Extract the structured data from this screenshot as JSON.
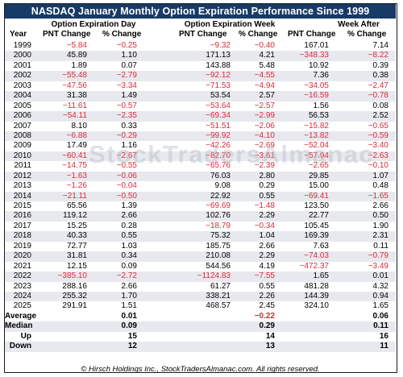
{
  "title": "NASDAQ January Monthly Option Expiration Performance Since 1999",
  "headers": {
    "group_day": "Option Expiration Day",
    "group_week": "Option Expiration Week",
    "group_after": "Week After",
    "year": "Year",
    "pnt_change": "PNT Change",
    "pct_change": "% Change"
  },
  "rows": [
    [
      "1999",
      "−5.84",
      "−0.25",
      "−9.32",
      "−0.40",
      "167.01",
      "7.14"
    ],
    [
      "2000",
      "45.89",
      "1.10",
      "171.13",
      "4.21",
      "−348.33",
      "−8.22"
    ],
    [
      "2001",
      "1.89",
      "0.07",
      "143.88",
      "5.48",
      "10.92",
      "0.39"
    ],
    [
      "2002",
      "−55.48",
      "−2.79",
      "−92.12",
      "−4.55",
      "7.36",
      "0.38"
    ],
    [
      "2003",
      "−47.56",
      "−3.34",
      "−71.53",
      "−4.94",
      "−34.05",
      "−2.47"
    ],
    [
      "2004",
      "31.38",
      "1.49",
      "53.54",
      "2.57",
      "−16.59",
      "−0.78"
    ],
    [
      "2005",
      "−11.61",
      "−0.57",
      "−53.64",
      "−2.57",
      "1.56",
      "0.08"
    ],
    [
      "2006",
      "−54.11",
      "−2.35",
      "−69.34",
      "−2.99",
      "56.53",
      "2.52"
    ],
    [
      "2007",
      "8.10",
      "0.33",
      "−51.51",
      "−2.06",
      "−15.82",
      "−0.65"
    ],
    [
      "2008",
      "−6.88",
      "−0.29",
      "−99.92",
      "−4.10",
      "−13.82",
      "−0.59"
    ],
    [
      "2009",
      "17.49",
      "1.16",
      "−42.26",
      "−2.69",
      "−52.04",
      "−3.40"
    ],
    [
      "2010",
      "−60.41",
      "−2.67",
      "−82.70",
      "−3.61",
      "−57.94",
      "−2.63"
    ],
    [
      "2011",
      "−14.75",
      "−0.55",
      "−65.76",
      "−2.39",
      "−2.65",
      "−0.10"
    ],
    [
      "2012",
      "−1.63",
      "−0.06",
      "76.03",
      "2.80",
      "29.85",
      "1.07"
    ],
    [
      "2013",
      "−1.26",
      "−0.04",
      "9.08",
      "0.29",
      "15.00",
      "0.48"
    ],
    [
      "2014",
      "−21.11",
      "−0.50",
      "22.92",
      "0.55",
      "−69.41",
      "−1.65"
    ],
    [
      "2015",
      "65.56",
      "1.39",
      "−69.69",
      "−1.48",
      "123.50",
      "2.66"
    ],
    [
      "2016",
      "119.12",
      "2.66",
      "102.76",
      "2.29",
      "22.77",
      "0.50"
    ],
    [
      "2017",
      "15.25",
      "0.28",
      "−18.79",
      "−0.34",
      "105.45",
      "1.90"
    ],
    [
      "2018",
      "40.33",
      "0.55",
      "75.32",
      "1.04",
      "169.39",
      "2.31"
    ],
    [
      "2019",
      "72.77",
      "1.03",
      "185.75",
      "2.66",
      "7.63",
      "0.11"
    ],
    [
      "2020",
      "31.81",
      "0.34",
      "210.08",
      "2.29",
      "−74.03",
      "−0.79"
    ],
    [
      "2021",
      "12.15",
      "0.09",
      "544.56",
      "4.19",
      "−472.37",
      "−3.49"
    ],
    [
      "2022",
      "−385.10",
      "−2.72",
      "−1124.83",
      "−7.55",
      "1.65",
      "0.01"
    ],
    [
      "2023",
      "288.16",
      "2.66",
      "61.27",
      "0.55",
      "481.28",
      "4.32"
    ],
    [
      "2024",
      "255.32",
      "1.70",
      "338.21",
      "2.26",
      "144.39",
      "0.94"
    ],
    [
      "2025",
      "291.91",
      "1.51",
      "468.57",
      "2.45",
      "324.10",
      "1.65"
    ]
  ],
  "summary": [
    {
      "label": "Average",
      "day": "0.01",
      "week": "−0.22",
      "after": "0.06"
    },
    {
      "label": "Median",
      "day": "0.09",
      "week": "0.29",
      "after": "0.11"
    },
    {
      "label": "Up",
      "day": "15",
      "week": "14",
      "after": "16"
    },
    {
      "label": "Down",
      "day": "12",
      "week": "13",
      "after": "11"
    }
  ],
  "watermark": "StockTradersAlmanac",
  "footer": "© Hirsch Holdings Inc., StockTradersAlmanac.com. All rights reserved.",
  "colors": {
    "title_bg": "#173a66",
    "negative": "#e0283a",
    "band": "#e7e9ee"
  }
}
